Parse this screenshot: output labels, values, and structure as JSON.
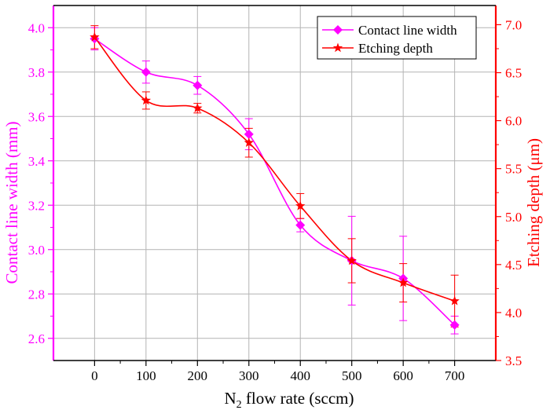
{
  "chart_data": {
    "type": "line",
    "x": [
      0,
      100,
      200,
      300,
      400,
      500,
      600,
      700
    ],
    "xlabel_main": "N",
    "xlabel_sub": "2",
    "xlabel_rest": " flow rate (sccm)",
    "xlim": [
      -80,
      780
    ],
    "xticks": [
      "0",
      "100",
      "200",
      "300",
      "400",
      "500",
      "600",
      "700"
    ],
    "y_left": {
      "label": "Contact line width (mm)",
      "lim": [
        2.5,
        4.1
      ],
      "ticks": [
        "2.6",
        "2.8",
        "3.0",
        "3.2",
        "3.4",
        "3.6",
        "3.8",
        "4.0"
      ],
      "color": "#ff00ff"
    },
    "y_right": {
      "label": "Etching depth (μm)",
      "lim": [
        3.5,
        7.2
      ],
      "ticks": [
        "3.5",
        "4.0",
        "4.5",
        "5.0",
        "5.5",
        "6.0",
        "6.5",
        "7.0"
      ],
      "color": "#ff0000"
    },
    "grid": true,
    "legend_position": "top-right",
    "series": [
      {
        "name": "Contact line width",
        "axis": "left",
        "marker": "diamond",
        "color": "#ff00ff",
        "values": [
          3.95,
          3.8,
          3.74,
          3.52,
          3.11,
          2.95,
          2.87,
          2.66
        ],
        "errors": [
          0.05,
          0.05,
          0.04,
          0.07,
          0.03,
          0.2,
          0.19,
          0.04
        ]
      },
      {
        "name": "Etching depth",
        "axis": "right",
        "marker": "star",
        "color": "#ff0000",
        "values": [
          6.87,
          6.21,
          6.13,
          5.77,
          5.11,
          4.54,
          4.31,
          4.12
        ],
        "errors": [
          0.12,
          0.09,
          0.05,
          0.15,
          0.13,
          0.23,
          0.2,
          0.27
        ]
      }
    ]
  }
}
